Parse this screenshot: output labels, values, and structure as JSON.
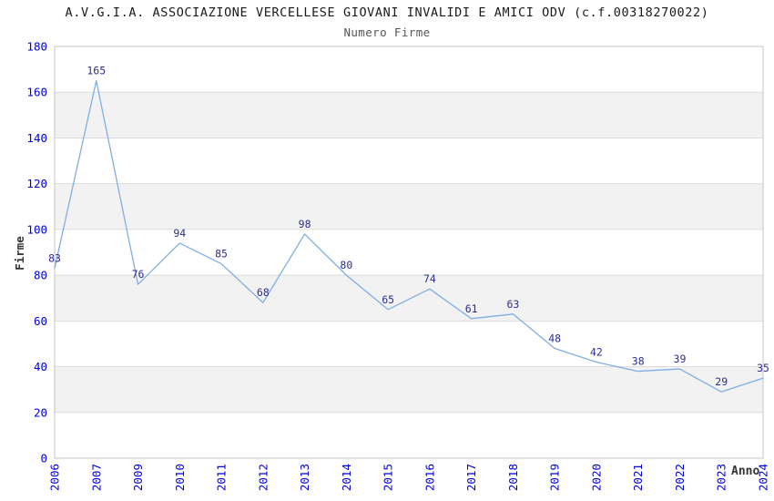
{
  "chart_data": {
    "type": "line",
    "title": "A.V.G.I.A. ASSOCIAZIONE VERCELLESE GIOVANI INVALIDI E AMICI ODV (c.f.00318270022)",
    "subtitle": "Numero Firme",
    "xlabel": "Anno",
    "ylabel": "Firme",
    "categories": [
      "2006",
      "2007",
      "2009",
      "2010",
      "2011",
      "2012",
      "2013",
      "2014",
      "2015",
      "2016",
      "2017",
      "2018",
      "2019",
      "2020",
      "2021",
      "2022",
      "2023",
      "2024"
    ],
    "values": [
      83,
      165,
      76,
      94,
      85,
      68,
      98,
      80,
      65,
      74,
      61,
      63,
      48,
      42,
      38,
      39,
      29,
      35
    ],
    "ylim": [
      0,
      180
    ],
    "ytick_step": 20,
    "yticks": [
      0,
      20,
      40,
      60,
      80,
      100,
      120,
      140,
      160,
      180
    ],
    "grid": "horizontal-lines-with-alternating-bands",
    "legend_position": "none",
    "point_labels_visible": true,
    "colors": {
      "line": "#80aee2",
      "tick_label": "#0000dd",
      "point_label": "#2d2d92",
      "band": "#f2f2f2",
      "gridline": "#dcdcdc",
      "plot_border": "#c4c4c4",
      "title": "#1a1a1a",
      "subtitle": "#555555",
      "axis_label": "#333333"
    }
  }
}
